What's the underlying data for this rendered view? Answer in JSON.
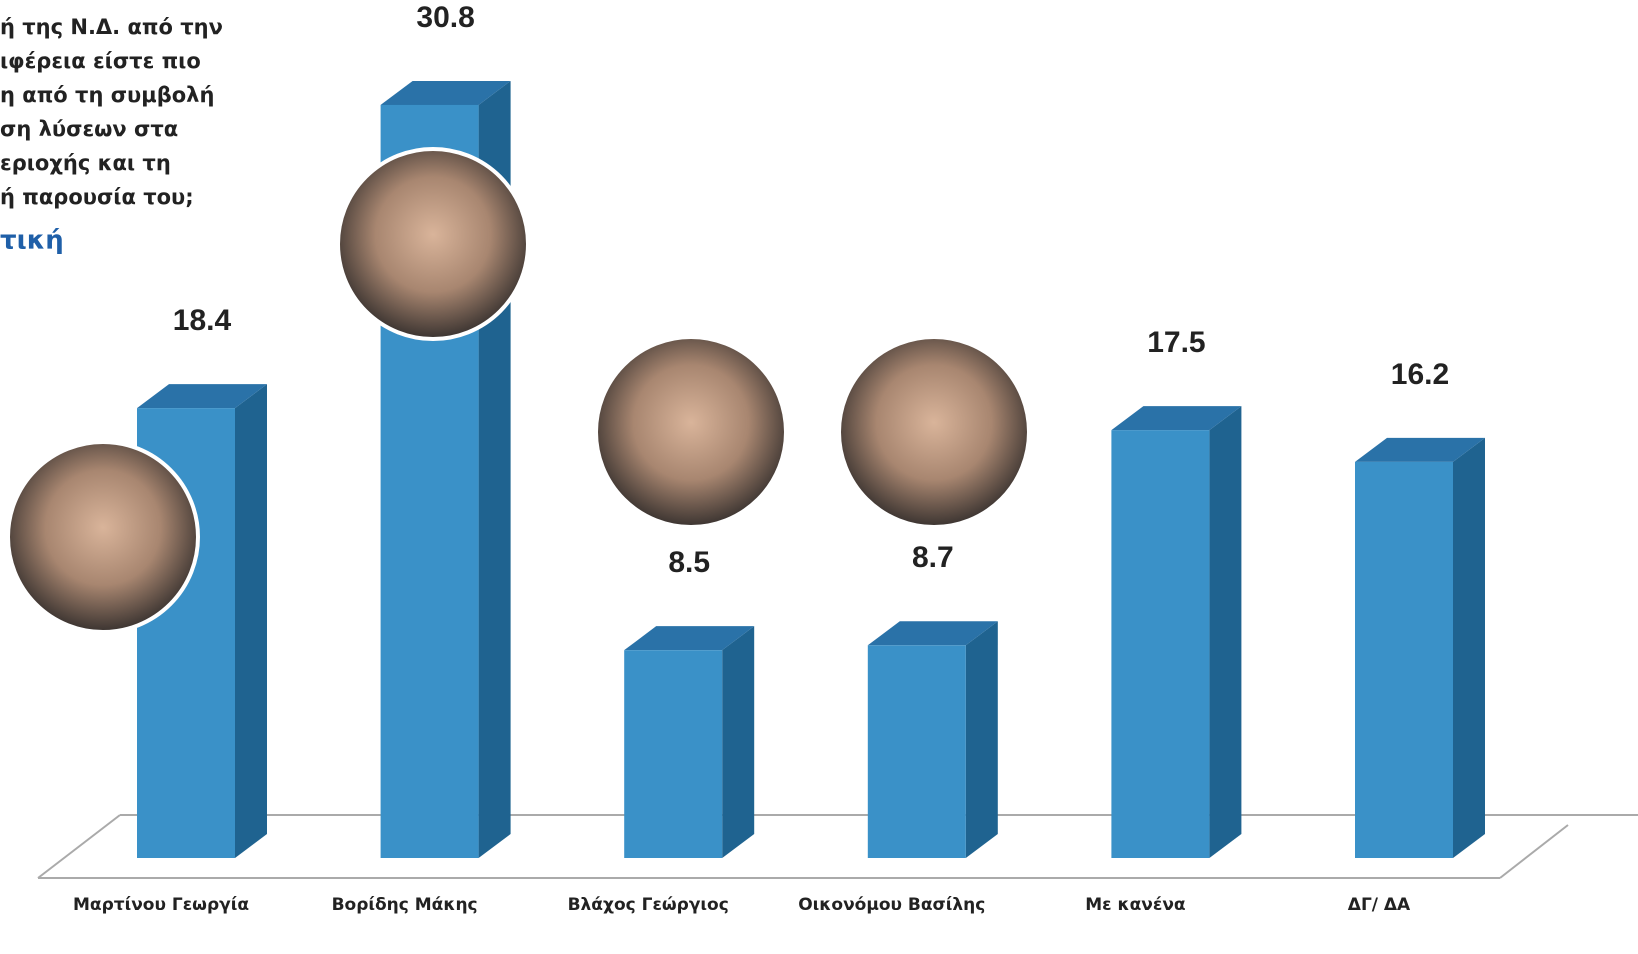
{
  "chart_data": {
    "type": "bar",
    "title_lines": [
      "ή της Ν.Δ. από την",
      "ιφέρεια είστε πιο",
      "η από τη συμβολή",
      "ση λύσεων στα",
      "εριοχής και τη",
      "ή παρουσία του;"
    ],
    "subtitle": "τική",
    "categories": [
      "Μαρτίνου Γεωργία",
      "Βορίδης Μάκης",
      "Βλάχος Γεώργιος",
      "Οικονόμου Βασίλης",
      "Με κανένα",
      "ΔΓ/ ΔΑ"
    ],
    "values": [
      18.4,
      30.8,
      8.5,
      8.7,
      17.5,
      16.2
    ],
    "color": "#3a91c8"
  }
}
